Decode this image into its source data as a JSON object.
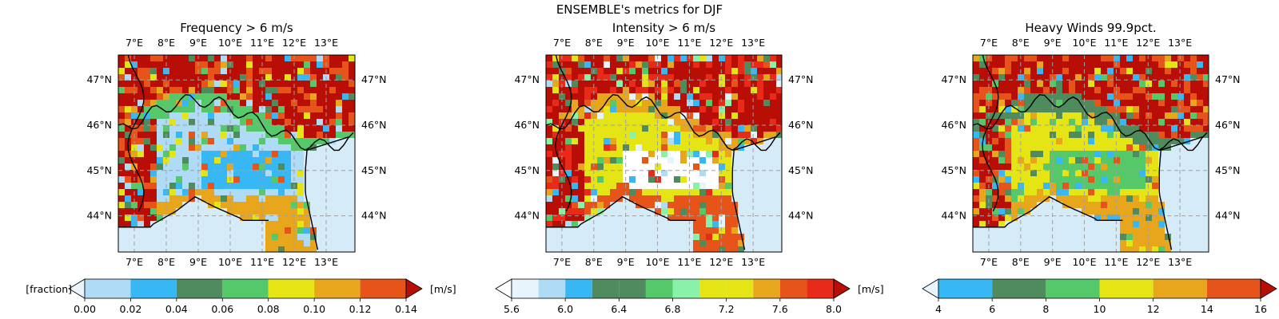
{
  "figure": {
    "suptitle": "ENSEMBLE's metrics for DJF"
  },
  "colors": {
    "sea": "#d6ebf8",
    "border": "#000000",
    "grid": "#a0a0a0"
  },
  "chart_data": [
    {
      "type": "heatmap",
      "title": "Frequency > 6 m/s",
      "xticks": [
        "7°E",
        "8°E",
        "9°E",
        "10°E",
        "11°E",
        "12°E",
        "13°E"
      ],
      "yticks": [
        "44°N",
        "45°N",
        "46°N",
        "47°N"
      ],
      "xlim_deg": [
        6.5,
        13.9
      ],
      "ylim_deg": [
        43.2,
        47.55
      ],
      "colorbar": {
        "label_left": "[fraction]",
        "label_right": "[m/s]",
        "ticks": [
          "0.00",
          "0.02",
          "0.04",
          "0.06",
          "0.08",
          "0.10",
          "0.12",
          "0.14"
        ],
        "levels": [
          0.0,
          0.02,
          0.04,
          0.06,
          0.08,
          0.1,
          0.12,
          0.14
        ],
        "under_color": "#e9f4fc",
        "over_color": "#b80e05",
        "colors": [
          "#b0dbf6",
          "#37b8f5",
          "#4f8b5c",
          "#55c86a",
          "#e5e516",
          "#e8a61c",
          "#e65419"
        ]
      },
      "field": {
        "plain": "#b0dbf6",
        "lowland": "#37b8f5",
        "prealps": "#55c86a",
        "alps": "#b80e05",
        "apennine": "#e8a61c"
      }
    },
    {
      "type": "heatmap",
      "title": "Intensity > 6 m/s",
      "xticks": [
        "7°E",
        "8°E",
        "9°E",
        "10°E",
        "11°E",
        "12°E",
        "13°E"
      ],
      "yticks": [
        "44°N",
        "45°N",
        "46°N",
        "47°N"
      ],
      "xlim_deg": [
        6.5,
        13.9
      ],
      "ylim_deg": [
        43.2,
        47.55
      ],
      "colorbar": {
        "label_left": "",
        "label_right": "[m/s]",
        "ticks": [
          "5.6",
          "6.0",
          "6.4",
          "6.8",
          "7.2",
          "7.6",
          "8.0"
        ],
        "levels": [
          5.6,
          5.8,
          6.0,
          6.2,
          6.4,
          6.6,
          6.8,
          7.0,
          7.2,
          7.4,
          7.6,
          7.8,
          8.0
        ],
        "under_color": "#ffffff",
        "over_color": "#b80e05",
        "colors": [
          "#e8f4fc",
          "#b0dbf6",
          "#37b8f5",
          "#4f8b5c",
          "#4f8b5c",
          "#55c86a",
          "#8af1a8",
          "#e5e516",
          "#e5e516",
          "#e8a61c",
          "#e65419",
          "#e82a18"
        ]
      },
      "field": {
        "plain": "#e5e516",
        "lowland": "#ffffff",
        "prealps": "#e8a61c",
        "alps": "#b80e05",
        "apennine": "#e65419"
      }
    },
    {
      "type": "heatmap",
      "title": "Heavy Winds 99.9pct.",
      "xticks": [
        "7°E",
        "8°E",
        "9°E",
        "10°E",
        "11°E",
        "12°E",
        "13°E"
      ],
      "yticks": [
        "44°N",
        "45°N",
        "46°N",
        "47°N"
      ],
      "xlim_deg": [
        6.5,
        13.9
      ],
      "ylim_deg": [
        43.2,
        47.55
      ],
      "colorbar": {
        "label_left": "",
        "label_right": "",
        "ticks": [
          "4",
          "6",
          "8",
          "10",
          "12",
          "14",
          "16"
        ],
        "levels": [
          4,
          6,
          8,
          10,
          12,
          14,
          16
        ],
        "under_color": "#e9f4fc",
        "over_color": "#b80e05",
        "colors": [
          "#37b8f5",
          "#4f8b5c",
          "#55c86a",
          "#e5e516",
          "#e8a61c",
          "#e65419"
        ]
      },
      "field": {
        "plain": "#e5e516",
        "lowland": "#55c86a",
        "prealps": "#4f8b5c",
        "alps": "#b80e05",
        "apennine": "#e8a61c"
      }
    }
  ]
}
